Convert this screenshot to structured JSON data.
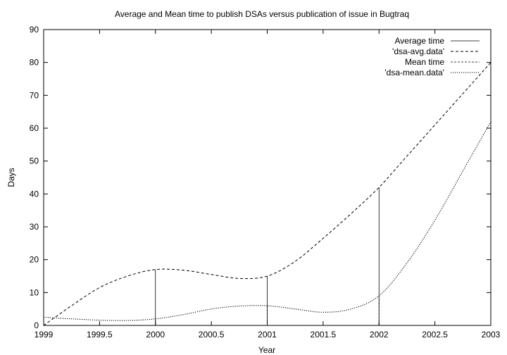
{
  "chart_data": {
    "type": "line",
    "title": "Average and Mean time to publish DSAs versus publication of issue in Bugtraq",
    "xlabel": "Year",
    "ylabel": "Days",
    "xlim": [
      1999,
      2003
    ],
    "ylim": [
      0,
      90
    ],
    "x_ticks": [
      "1999",
      "1999.5",
      "2000",
      "2000.5",
      "2001",
      "2001.5",
      "2002",
      "2002.5",
      "2003"
    ],
    "y_ticks": [
      "0",
      "10",
      "20",
      "30",
      "40",
      "50",
      "60",
      "70",
      "80",
      "90"
    ],
    "grid": false,
    "legend_position": "top-right",
    "series": [
      {
        "name": "Average time",
        "style": "impulses",
        "x": [
          1999,
          2000,
          2001,
          2002,
          2003
        ],
        "y": [
          0,
          17,
          15,
          42,
          80
        ]
      },
      {
        "name": "'dsa-avg.data'",
        "style": "smooth-dashed",
        "x": [
          1999,
          1999.25,
          1999.5,
          1999.75,
          2000,
          2000.25,
          2000.5,
          2000.75,
          2001,
          2001.25,
          2001.5,
          2001.75,
          2002,
          2002.25,
          2002.5,
          2002.75,
          2003
        ],
        "y": [
          0,
          6,
          11.5,
          15,
          17,
          16.8,
          15.5,
          14.3,
          15,
          19.5,
          26.5,
          34,
          42,
          51.5,
          61,
          70.5,
          80
        ]
      },
      {
        "name": "Mean time",
        "style": "impulses",
        "x": [
          1999,
          2000,
          2001,
          2002,
          2003
        ],
        "y": [
          2,
          2,
          6,
          9,
          62
        ]
      },
      {
        "name": "'dsa-mean.data'",
        "style": "smooth-dotted",
        "x": [
          1999,
          1999.25,
          1999.5,
          1999.75,
          2000,
          2000.25,
          2000.5,
          2000.75,
          2001,
          2001.25,
          2001.5,
          2001.75,
          2002,
          2002.25,
          2002.5,
          2002.75,
          2003
        ],
        "y": [
          2.5,
          2,
          1.6,
          1.5,
          2,
          3.3,
          5,
          5.9,
          6,
          5,
          4,
          5,
          9,
          19,
          32,
          47,
          62
        ]
      }
    ]
  }
}
